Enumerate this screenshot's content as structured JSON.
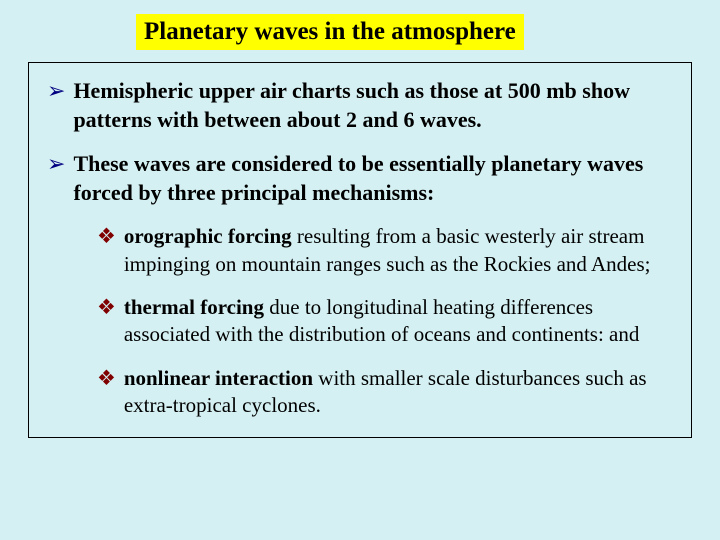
{
  "title": "Planetary waves in the atmosphere",
  "arrow1": "Hemispheric upper air charts such as those at 500 mb show patterns with between about 2 and 6 waves.",
  "arrow2": "These waves are considered to be essentially planetary waves forced by three principal mechanisms:",
  "d1_bold": "orographic forcing",
  "d1_rest": " resulting from a basic westerly  air stream impinging on mountain ranges such as the Rockies and Andes;",
  "d2_bold": "thermal forcing",
  "d2_rest": " due to longitudinal heating differences associated with the distribution of oceans and continents: and",
  "d3_bold": "nonlinear interaction",
  "d3_rest": " with smaller scale disturbances such as extra-tropical cyclones.",
  "bullets": {
    "arrow": "➢",
    "diamond": "❖"
  },
  "colors": {
    "background": "#d5f0f2",
    "title_bg": "#ffff00",
    "arrow": "#000080",
    "diamond": "#800000",
    "border": "#000000"
  }
}
